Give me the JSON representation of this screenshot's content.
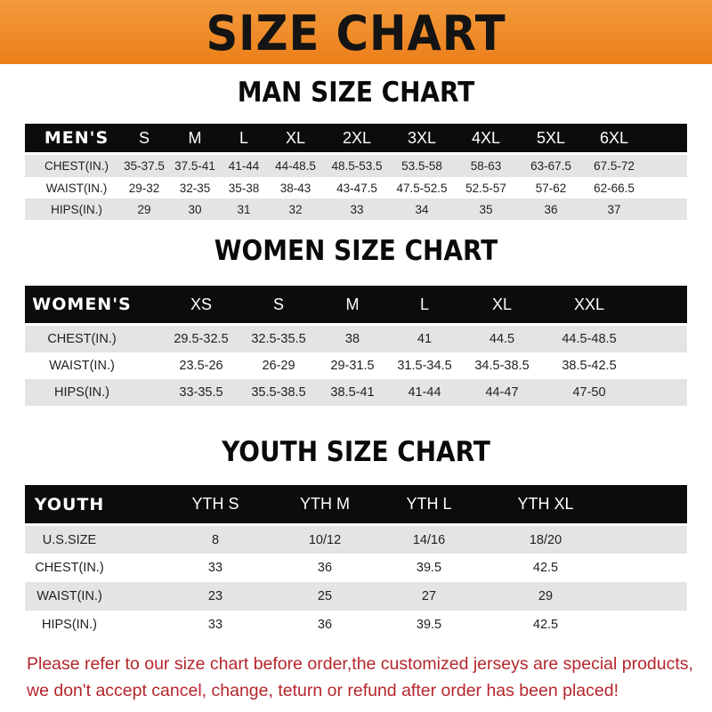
{
  "banner": {
    "title": "SIZE CHART",
    "color": "#ee8420"
  },
  "men": {
    "title": "MAN SIZE CHART",
    "header": [
      "MEN'S",
      "S",
      "M",
      "L",
      "XL",
      "2XL",
      "3XL",
      "4XL",
      "5XL",
      "6XL"
    ],
    "rows": [
      [
        "CHEST(IN.)",
        "35-37.5",
        "37.5-41",
        "41-44",
        "44-48.5",
        "48.5-53.5",
        "53.5-58",
        "58-63",
        "63-67.5",
        "67.5-72"
      ],
      [
        "WAIST(IN.)",
        "29-32",
        "32-35",
        "35-38",
        "38-43",
        "43-47.5",
        "47.5-52.5",
        "52.5-57",
        "57-62",
        "62-66.5"
      ],
      [
        "HIPS(IN.)",
        "29",
        "30",
        "31",
        "32",
        "33",
        "34",
        "35",
        "36",
        "37"
      ]
    ]
  },
  "women": {
    "title": "WOMEN SIZE CHART",
    "header": [
      "WOMEN'S",
      "XS",
      "S",
      "M",
      "L",
      "XL",
      "XXL"
    ],
    "rows": [
      [
        "CHEST(IN.)",
        "29.5-32.5",
        "32.5-35.5",
        "38",
        "41",
        "44.5",
        "44.5-48.5"
      ],
      [
        "WAIST(IN.)",
        "23.5-26",
        "26-29",
        "29-31.5",
        "31.5-34.5",
        "34.5-38.5",
        "38.5-42.5"
      ],
      [
        "HIPS(IN.)",
        "33-35.5",
        "35.5-38.5",
        "38.5-41",
        "41-44",
        "44-47",
        "47-50"
      ]
    ]
  },
  "youth": {
    "title": "YOUTH SIZE CHART",
    "header": [
      "YOUTH",
      "YTH S",
      "YTH M",
      "YTH L",
      "YTH XL"
    ],
    "rows": [
      [
        "U.S.SIZE",
        "8",
        "10/12",
        "14/16",
        "18/20"
      ],
      [
        "CHEST(IN.)",
        "33",
        "36",
        "39.5",
        "42.5"
      ],
      [
        "WAIST(IN.)",
        "23",
        "25",
        "27",
        "29"
      ],
      [
        "HIPS(IN.)",
        "33",
        "36",
        "39.5",
        "42.5"
      ]
    ]
  },
  "note": {
    "line1": "Please refer to our size chart before order,the customized jerseys are special products,",
    "line2": "we don't accept cancel, change, teturn or refund after order has been placed!",
    "color": "#b5262c"
  }
}
